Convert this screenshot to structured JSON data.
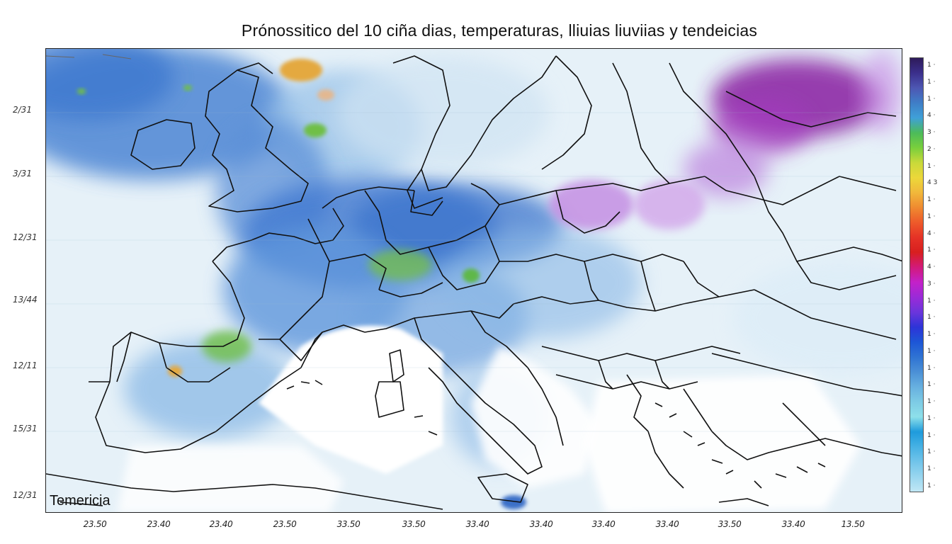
{
  "title": "Prónossitico del 10 ciña dias, temperaturas, lliuias    liuviias y tendeicias",
  "legend_label": "Temericia",
  "y_labels": [
    "2/31",
    "3/31",
    "12/31",
    "13/44",
    "12/11",
    "15/31",
    "12/31"
  ],
  "x_labels": [
    "23.50",
    "23.40",
    "23.40",
    "23.50",
    "33.50",
    "33.50",
    "33.40",
    "33.40",
    "33.40",
    "33.40",
    "33.50",
    "33.40",
    "13.50"
  ],
  "colorbar": {
    "colors": [
      "#2e1a5a",
      "#3b2f8c",
      "#4d57b3",
      "#3f7ec7",
      "#3fa0d8",
      "#4cbb5a",
      "#79cf3c",
      "#c9d93a",
      "#ecd83a",
      "#f1b83b",
      "#ef8a30",
      "#ee5a2a",
      "#e53226",
      "#d81f1f",
      "#d21a7a",
      "#c321c9",
      "#9a2ad8",
      "#6b35db",
      "#2d34d8",
      "#1d56d6",
      "#2f73d3",
      "#4b90d6",
      "#67b0e0",
      "#7dcbe5",
      "#8ee0ea",
      "#1e9bdc",
      "#46b1e4",
      "#71c4ea",
      "#98d6ef",
      "#c1e7f5"
    ],
    "tick_labels": [
      "1 ·",
      "1 ·",
      "1 ·",
      "4 ·",
      "3 ·",
      "2 ·",
      "1 ·",
      "4 3",
      "1 ·",
      "1 ·",
      "4 ·",
      "1 ·",
      "4 ·",
      "3 ·",
      "1 ·",
      "1 ·",
      "1 ·",
      "1 ·",
      "1 ·",
      "1 ·",
      "1 ·",
      "1 ·",
      "1 ·",
      "1 ·",
      "1 ·",
      "1 ·"
    ]
  },
  "map": {
    "region": "Europe",
    "colors": {
      "light": "#dcecf6",
      "mid_blue": "#7fb2e3",
      "deep_blue": "#3f78d0",
      "purple": "#8a2aa8",
      "lavender": "#c993e6",
      "green": "#6fbf46",
      "orange": "#e9a83a",
      "sea_white": "#ffffff"
    }
  }
}
